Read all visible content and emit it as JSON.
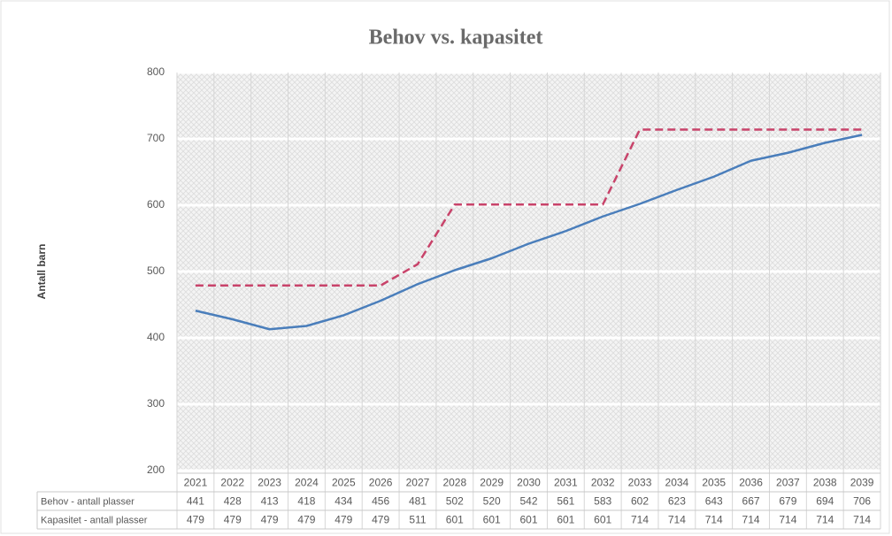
{
  "chart_data": {
    "type": "line",
    "title": "Behov vs. kapasitet",
    "y_label": "Antall barn",
    "categories": [
      "2021",
      "2022",
      "2023",
      "2024",
      "2025",
      "2026",
      "2027",
      "2028",
      "2029",
      "2030",
      "2031",
      "2032",
      "2033",
      "2034",
      "2035",
      "2036",
      "2037",
      "2038",
      "2039"
    ],
    "series": [
      {
        "name": "Behov - antall plasser",
        "color": "#4a7ebb",
        "dashed": false,
        "values": [
          441,
          428,
          413,
          418,
          434,
          456,
          481,
          502,
          520,
          542,
          561,
          583,
          602,
          623,
          643,
          667,
          679,
          694,
          706
        ]
      },
      {
        "name": "Kapasitet - antall plasser",
        "color": "#c8436a",
        "dashed": true,
        "values": [
          479,
          479,
          479,
          479,
          479,
          479,
          511,
          601,
          601,
          601,
          601,
          601,
          714,
          714,
          714,
          714,
          714,
          714,
          714
        ]
      }
    ],
    "ylim": [
      200,
      800
    ],
    "yticks": [
      200,
      300,
      400,
      500,
      600,
      700,
      800
    ],
    "grid": true
  }
}
